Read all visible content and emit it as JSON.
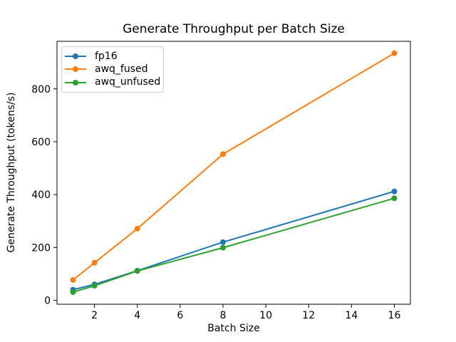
{
  "figure": {
    "title": "Generate Throughput per Batch Size",
    "xlabel": "Batch Size",
    "ylabel": "Generate Throughput (tokens/s)"
  },
  "chart_data": {
    "type": "line",
    "title": "Generate Throughput per Batch Size",
    "xlabel": "Batch Size",
    "ylabel": "Generate Throughput (tokens/s)",
    "x": [
      1,
      2,
      4,
      8,
      16
    ],
    "series": [
      {
        "name": "fp16",
        "color": "#1f77b4",
        "values": [
          40,
          60,
          112,
          220,
          412
        ]
      },
      {
        "name": "awq_fused",
        "color": "#ff7f0e",
        "values": [
          77,
          142,
          271,
          553,
          935
        ]
      },
      {
        "name": "awq_unfused",
        "color": "#2ca02c",
        "values": [
          31,
          55,
          111,
          199,
          386
        ]
      }
    ],
    "xticks": [
      2,
      4,
      6,
      8,
      10,
      12,
      14,
      16
    ],
    "yticks": [
      0,
      200,
      400,
      600,
      800
    ],
    "xlim": [
      0.25,
      16.75
    ],
    "ylim": [
      -15,
      980
    ],
    "grid": false,
    "legend_position": "upper left",
    "marker": "circle",
    "axis_color": "#000000",
    "frame_color": "#000000",
    "legend_border_color": "#cccccc"
  }
}
